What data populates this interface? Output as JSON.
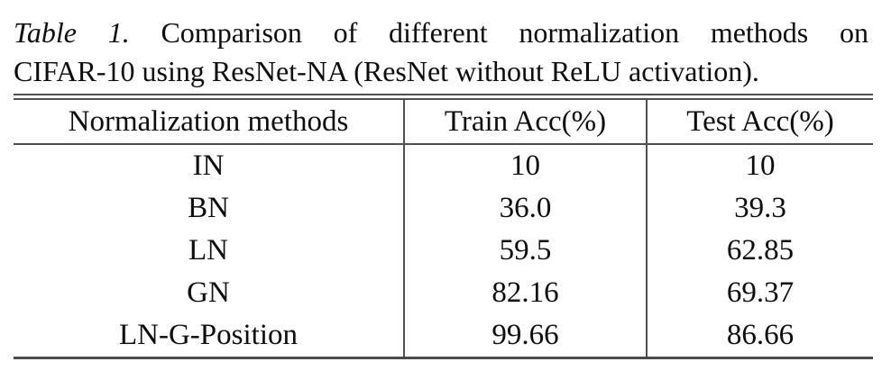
{
  "caption": {
    "label": "Table 1.",
    "line1_rest": "Comparison of different normalization methods on",
    "line2": "CIFAR-10 using ResNet-NA (ResNet without ReLU activation)."
  },
  "table": {
    "headers": [
      "Normalization methods",
      "Train Acc(%)",
      "Test Acc(%)"
    ],
    "rows": [
      [
        "IN",
        "10",
        "10"
      ],
      [
        "BN",
        "36.0",
        "39.3"
      ],
      [
        "LN",
        "59.5",
        "62.85"
      ],
      [
        "GN",
        "82.16",
        "69.37"
      ],
      [
        "LN-G-Position",
        "99.66",
        "86.66"
      ]
    ]
  },
  "colors": {
    "background": "#ffffff",
    "text": "#0d0d0d",
    "rule": "#4f4f4f"
  }
}
